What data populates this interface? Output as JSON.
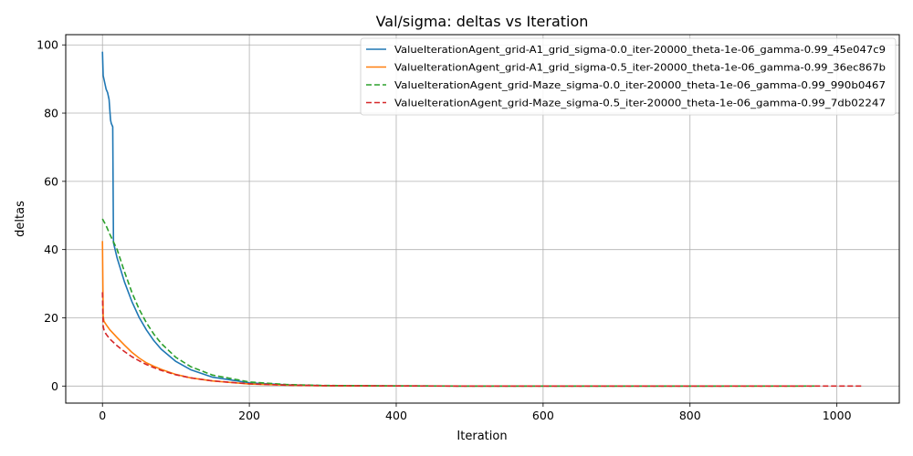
{
  "chart_data": {
    "type": "line",
    "title": "Val/sigma: deltas vs Iteration",
    "xlabel": "Iteration",
    "ylabel": "deltas",
    "xlim": [
      -50,
      1085
    ],
    "ylim": [
      -5,
      103
    ],
    "xticks": [
      0,
      200,
      400,
      600,
      800,
      1000
    ],
    "yticks": [
      0,
      20,
      40,
      60,
      80,
      100
    ],
    "grid": true,
    "legend_position": "top-right",
    "series": [
      {
        "name": "ValueIterationAgent_grid-A1_grid_sigma-0.0_iter-20000_theta-1e-06_gamma-0.99_45e047c9",
        "color": "#1f77b4",
        "dash": "solid",
        "x": [
          0,
          1,
          3,
          5,
          7,
          9,
          11,
          12,
          14,
          15,
          20,
          30,
          40,
          50,
          60,
          70,
          80,
          100,
          120,
          150,
          200,
          250,
          300,
          400,
          500,
          600,
          700,
          800,
          850
        ],
        "y": [
          98,
          91,
          89,
          87,
          86,
          84,
          78,
          77,
          76,
          42,
          37.5,
          30.5,
          24.8,
          20.1,
          16.4,
          13.3,
          10.8,
          7.2,
          4.8,
          2.6,
          0.95,
          0.36,
          0.13,
          0.02,
          0.003,
          0.0005,
          0.0001,
          1e-05,
          1e-06
        ]
      },
      {
        "name": "ValueIterationAgent_grid-A1_grid_sigma-0.5_iter-20000_theta-1e-06_gamma-0.99_36ec867b",
        "color": "#ff7f0e",
        "dash": "solid",
        "x": [
          0,
          1,
          2,
          5,
          10,
          20,
          30,
          40,
          50,
          60,
          70,
          80,
          100,
          120,
          150,
          200,
          250,
          300,
          400,
          500,
          600,
          700,
          800,
          900,
          950
        ],
        "y": [
          42.5,
          20.5,
          19,
          18,
          16.5,
          14.2,
          12,
          9.9,
          8.2,
          6.8,
          5.8,
          4.9,
          3.4,
          2.4,
          1.5,
          0.6,
          0.25,
          0.1,
          0.02,
          0.004,
          0.001,
          0.0002,
          5e-05,
          1e-05,
          1e-06
        ]
      },
      {
        "name": "ValueIterationAgent_grid-Maze_sigma-0.0_iter-20000_theta-1e-06_gamma-0.99_990b0467",
        "color": "#2ca02c",
        "dash": "dashed",
        "x": [
          0,
          5,
          10,
          20,
          30,
          40,
          50,
          60,
          70,
          80,
          100,
          120,
          150,
          200,
          250,
          300,
          400,
          500,
          600,
          700,
          800,
          900,
          970
        ],
        "y": [
          49,
          47,
          44.5,
          40,
          33.5,
          27.5,
          22.5,
          18.5,
          15.2,
          12.5,
          8.4,
          5.7,
          3.2,
          1.2,
          0.45,
          0.17,
          0.025,
          0.004,
          0.0006,
          0.0001,
          2e-05,
          4e-06,
          1e-06
        ]
      },
      {
        "name": "ValueIterationAgent_grid-Maze_sigma-0.5_iter-20000_theta-1e-06_gamma-0.99_7db02247",
        "color": "#d62728",
        "dash": "dashed",
        "x": [
          0,
          1,
          2,
          3,
          5,
          10,
          20,
          30,
          40,
          50,
          60,
          70,
          80,
          100,
          120,
          150,
          200,
          250,
          300,
          400,
          500,
          600,
          700,
          800,
          900,
          1000,
          1035
        ],
        "y": [
          27.5,
          17.5,
          16.5,
          16,
          15.2,
          13.8,
          11.8,
          10.1,
          8.6,
          7.4,
          6.3,
          5.4,
          4.6,
          3.3,
          2.4,
          1.5,
          0.65,
          0.27,
          0.11,
          0.02,
          0.004,
          0.0008,
          0.0002,
          4e-05,
          1e-05,
          2e-06,
          1e-06
        ]
      }
    ]
  }
}
